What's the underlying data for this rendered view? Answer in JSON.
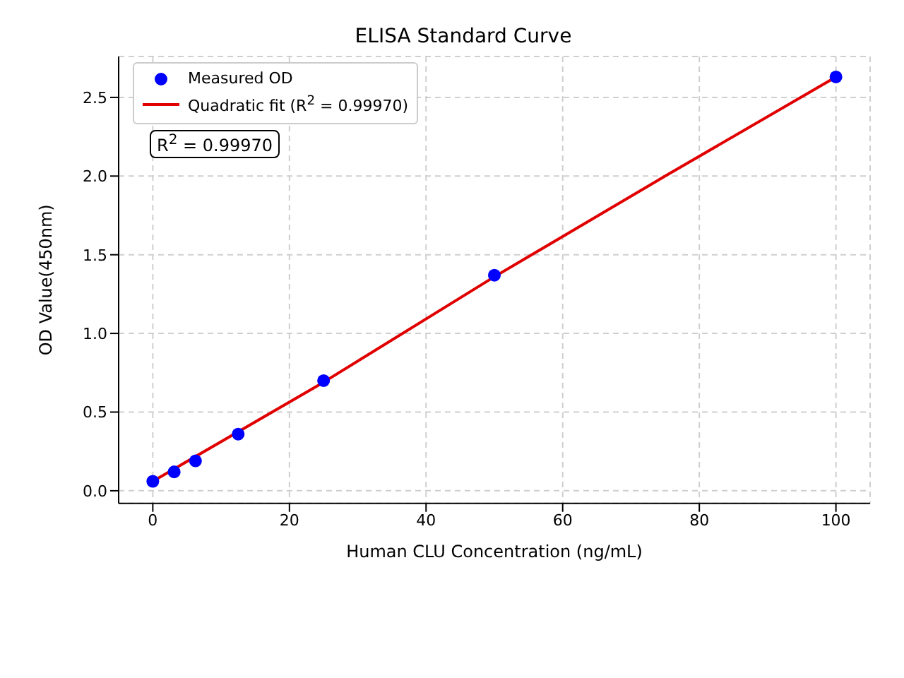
{
  "chart_data": {
    "type": "scatter",
    "title": "ELISA Standard Curve",
    "xlabel": "Human CLU Concentration (ng/mL)",
    "ylabel": "OD Value(450nm)",
    "series": [
      {
        "name": "Measured OD",
        "color": "#0000ff",
        "marker": "circle",
        "x": [
          0,
          3.125,
          6.25,
          12.5,
          25,
          50,
          100
        ],
        "values": [
          0.06,
          0.12,
          0.19,
          0.36,
          0.7,
          1.37,
          2.63
        ]
      },
      {
        "name": "Quadratic fit (R$^{2}$ = 0.99970)",
        "type": "line",
        "color": "#e00000",
        "marker": "none",
        "line_style": "solid",
        "x": [
          0,
          25,
          50,
          75,
          100
        ],
        "values": [
          0.06,
          0.69,
          1.36,
          2.0,
          2.63
        ]
      }
    ],
    "xlim": [
      -5,
      105
    ],
    "xticks": [
      0,
      20,
      40,
      60,
      80,
      100
    ],
    "ylim": [
      -0.08,
      2.76
    ],
    "yticks": [
      {
        "value": 0,
        "label": "0.0"
      },
      0.5,
      {
        "value": 1,
        "label": "1.0"
      },
      1.5,
      {
        "value": 2,
        "label": "2.0"
      },
      2.5
    ],
    "grid": true,
    "legend": "top left",
    "annotations": [
      "R$^{2}$ = 0.99970"
    ]
  }
}
